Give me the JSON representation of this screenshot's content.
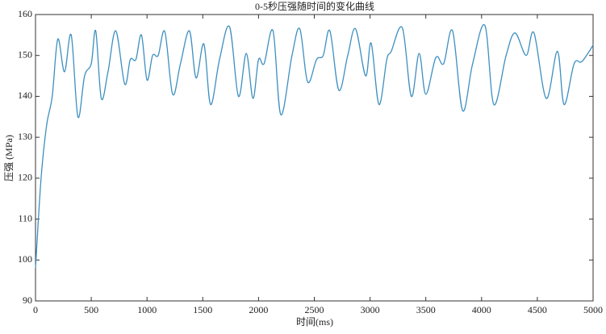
{
  "chart_data": {
    "type": "line",
    "title": "0-5秒压强随时间的变化曲线",
    "xlabel": "时间(ms)",
    "ylabel": "压强 (MPa)",
    "x": [
      0,
      50,
      100,
      150,
      200,
      260,
      320,
      380,
      440,
      500,
      540,
      590,
      650,
      720,
      800,
      850,
      900,
      950,
      1000,
      1050,
      1100,
      1160,
      1230,
      1300,
      1380,
      1440,
      1510,
      1570,
      1650,
      1740,
      1820,
      1890,
      1950,
      2000,
      2050,
      2130,
      2200,
      2300,
      2370,
      2440,
      2520,
      2580,
      2640,
      2720,
      2800,
      2870,
      2960,
      3010,
      3080,
      3150,
      3190,
      3290,
      3370,
      3440,
      3500,
      3590,
      3660,
      3740,
      3830,
      3920,
      4030,
      4110,
      4220,
      4300,
      4400,
      4470,
      4580,
      4680,
      4740,
      4830,
      4900,
      5000
    ],
    "series": [
      {
        "name": "压强",
        "color": "#3d8fc0",
        "values": [
          98,
          120,
          133,
          140,
          154,
          146,
          155,
          135,
          145,
          148,
          156,
          139.5,
          146,
          156,
          143,
          149,
          149,
          155,
          144,
          150,
          150,
          155.8,
          140.5,
          148,
          156,
          144.5,
          152.8,
          138,
          149,
          157,
          140,
          150.5,
          139.5,
          149,
          148,
          156,
          135.5,
          150,
          156.5,
          143.5,
          149,
          150,
          156,
          141.5,
          150,
          156.5,
          145,
          153,
          138,
          149,
          151,
          156.7,
          140,
          150.5,
          140.5,
          149.5,
          148,
          156,
          136.5,
          148,
          157.3,
          138,
          150,
          155.5,
          150,
          155.5,
          139.5,
          151,
          138,
          148,
          148.5,
          152.5
        ]
      }
    ],
    "xlim": [
      0,
      5000
    ],
    "xticks": [
      0,
      500,
      1000,
      1500,
      2000,
      2500,
      3000,
      3500,
      4000,
      4500,
      5000
    ],
    "ylim": [
      90,
      160
    ],
    "yticks": [
      90,
      100,
      110,
      120,
      130,
      140,
      150,
      160
    ],
    "grid": false
  }
}
